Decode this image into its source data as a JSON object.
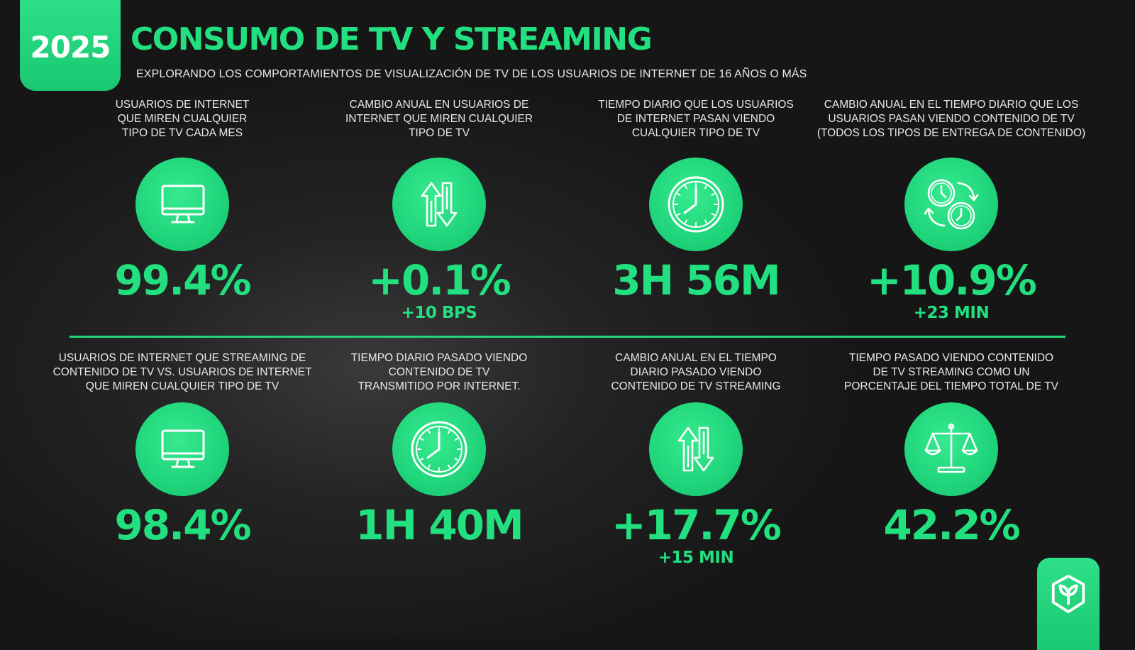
{
  "header": {
    "year": "2025",
    "title": "CONSUMO DE TV Y STREAMING",
    "subtitle": "EXPLORANDO LOS COMPORTAMIENTOS DE VISUALIZACIÓN DE TV DE LOS USUARIOS DE INTERNET DE 16 AÑOS O MÁS"
  },
  "stats": [
    {
      "desc": [
        "USUARIOS DE INTERNET",
        "QUE MIREN CUALQUIER",
        "TIPO DE TV CADA MES"
      ],
      "icon": "monitor-icon",
      "value": "99.4%",
      "sub": ""
    },
    {
      "desc": [
        "CAMBIO ANUAL EN USUARIOS DE",
        "INTERNET QUE MIREN CUALQUIER",
        "TIPO DE TV"
      ],
      "icon": "up-down-arrows-icon",
      "value": "+0.1%",
      "sub": "+10 BPS"
    },
    {
      "desc": [
        "TIEMPO DIARIO QUE LOS USUARIOS",
        "DE INTERNET PASAN VIENDO",
        "CUALQUIER TIPO DE TV"
      ],
      "icon": "clock-icon",
      "value": "3H 56M",
      "sub": ""
    },
    {
      "desc": [
        "CAMBIO ANUAL EN EL TIEMPO DIARIO QUE LOS",
        "USUARIOS PASAN VIENDO CONTENIDO DE TV",
        "(TODOS LOS TIPOS DE ENTREGA DE CONTENIDO)"
      ],
      "icon": "clocks-cycle-icon",
      "value": "+10.9%",
      "sub": "+23 MIN"
    },
    {
      "desc": [
        "USUARIOS DE INTERNET QUE STREAMING DE",
        "CONTENIDO DE TV VS. USUARIOS DE INTERNET",
        "QUE MIREN CUALQUIER TIPO DE TV"
      ],
      "icon": "monitor-icon",
      "value": "98.4%",
      "sub": ""
    },
    {
      "desc": [
        "TIEMPO DIARIO PASADO VIENDO",
        "CONTENIDO DE TV",
        "TRANSMITIDO POR INTERNET."
      ],
      "icon": "clock-icon",
      "value": "1H 40M",
      "sub": ""
    },
    {
      "desc": [
        "CAMBIO ANUAL EN EL TIEMPO",
        "DIARIO PASADO VIENDO",
        "CONTENIDO DE TV STREAMING"
      ],
      "icon": "up-down-arrows-icon",
      "value": "+17.7%",
      "sub": "+15 MIN"
    },
    {
      "desc": [
        "TIEMPO PASADO VIENDO CONTENIDO",
        "DE TV STREAMING COMO UN",
        "PORCENTAJE DEL TIEMPO TOTAL DE TV"
      ],
      "icon": "scale-icon",
      "value": "42.2%",
      "sub": ""
    }
  ],
  "colors": {
    "accent": "#22e07f",
    "background": "#1b1b1b",
    "text": "#e8e8e8"
  },
  "brand_icon": "leaf-logo-icon"
}
